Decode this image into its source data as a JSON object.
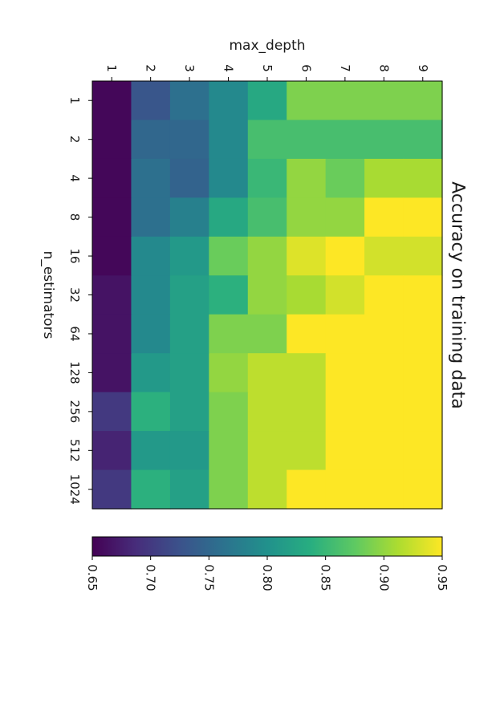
{
  "chart_data": {
    "type": "heatmap",
    "title": "Accuracy on training data",
    "xlabel": "max_depth",
    "ylabel": "n_estimators",
    "max_depth": [
      "1",
      "2",
      "3",
      "4",
      "5",
      "6",
      "7",
      "8",
      "9"
    ],
    "n_estimators": [
      "1",
      "2",
      "4",
      "8",
      "16",
      "32",
      "64",
      "128",
      "256",
      "512",
      "1024"
    ],
    "values": [
      [
        0.655,
        0.73,
        0.76,
        0.79,
        0.83,
        0.89,
        0.89,
        0.89,
        0.89
      ],
      [
        0.655,
        0.75,
        0.75,
        0.79,
        0.86,
        0.86,
        0.86,
        0.86,
        0.86
      ],
      [
        0.655,
        0.76,
        0.745,
        0.79,
        0.85,
        0.9,
        0.88,
        0.91,
        0.91
      ],
      [
        0.655,
        0.76,
        0.78,
        0.83,
        0.86,
        0.9,
        0.9,
        0.95,
        0.95
      ],
      [
        0.655,
        0.79,
        0.81,
        0.88,
        0.9,
        0.935,
        0.95,
        0.93,
        0.93
      ],
      [
        0.665,
        0.79,
        0.82,
        0.84,
        0.9,
        0.91,
        0.93,
        0.95,
        0.95
      ],
      [
        0.665,
        0.79,
        0.82,
        0.89,
        0.89,
        0.95,
        0.95,
        0.95,
        0.95
      ],
      [
        0.665,
        0.81,
        0.82,
        0.9,
        0.92,
        0.92,
        0.95,
        0.95,
        0.95
      ],
      [
        0.7,
        0.84,
        0.82,
        0.89,
        0.92,
        0.92,
        0.95,
        0.95,
        0.95
      ],
      [
        0.68,
        0.81,
        0.81,
        0.89,
        0.92,
        0.92,
        0.95,
        0.95,
        0.95
      ],
      [
        0.7,
        0.84,
        0.82,
        0.89,
        0.92,
        0.95,
        0.95,
        0.95,
        0.95
      ]
    ],
    "colormap": "viridis",
    "vmin": 0.65,
    "vmax": 0.95,
    "colorbar_ticks": [
      "0.65",
      "0.70",
      "0.75",
      "0.80",
      "0.85",
      "0.90",
      "0.95"
    ],
    "colorbar_tick_values": [
      0.65,
      0.7,
      0.75,
      0.8,
      0.85,
      0.9,
      0.95
    ],
    "grid": false,
    "orientation": "rotated 90 degrees clockwise"
  }
}
